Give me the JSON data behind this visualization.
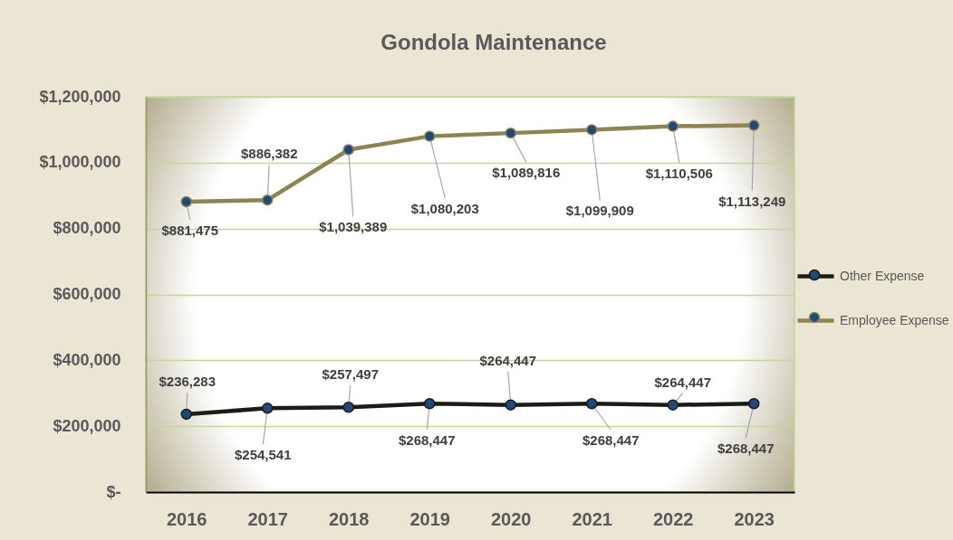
{
  "chart_data": {
    "type": "line",
    "title": "Gondola Maintenance",
    "categories": [
      "2016",
      "2017",
      "2018",
      "2019",
      "2020",
      "2021",
      "2022",
      "2023"
    ],
    "series": [
      {
        "name": "Other Expense",
        "color": "#1c1c16",
        "values": [
          236283,
          254541,
          257497,
          268447,
          264447,
          268447,
          264447,
          268447
        ],
        "value_labels": [
          "$236,283",
          "$254,541",
          "$257,497",
          "$268,447",
          "$264,447",
          "$268,447",
          "$264,447",
          "$268,447"
        ]
      },
      {
        "name": "Employee Expense",
        "color": "#8c8550",
        "values": [
          881475,
          886382,
          1039389,
          1080203,
          1089816,
          1099909,
          1110506,
          1113249
        ],
        "value_labels": [
          "$881,475",
          "$886,382",
          "$1,039,389",
          "$1,080,203",
          "$1,089,816",
          "$1,099,909",
          "$1,110,506",
          "$1,113,249"
        ]
      }
    ],
    "ylim": [
      0,
      1200000
    ],
    "yticks": [
      {
        "value": 0,
        "label": "$-"
      },
      {
        "value": 200000,
        "label": "$200,000"
      },
      {
        "value": 400000,
        "label": "$400,000"
      },
      {
        "value": 600000,
        "label": "$600,000"
      },
      {
        "value": 800000,
        "label": "$800,000"
      },
      {
        "value": 1000000,
        "label": "$1,000,000"
      },
      {
        "value": 1200000,
        "label": "$1,200,000"
      }
    ],
    "grid": "y",
    "legend": "right",
    "marker": "circle",
    "line_style": "solid"
  }
}
